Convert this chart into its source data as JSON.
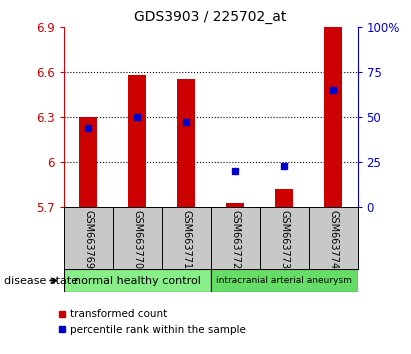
{
  "title": "GDS3903 / 225702_at",
  "samples": [
    "GSM663769",
    "GSM663770",
    "GSM663771",
    "GSM663772",
    "GSM663773",
    "GSM663774"
  ],
  "transformed_count": [
    6.3,
    6.58,
    6.55,
    5.73,
    5.82,
    6.9
  ],
  "percentile_rank": [
    44,
    50,
    47,
    20,
    23,
    65
  ],
  "ymin": 5.7,
  "ymax": 6.9,
  "yticks": [
    5.7,
    6.0,
    6.3,
    6.6,
    6.9
  ],
  "ytick_labels": [
    "5.7",
    "6",
    "6.3",
    "6.6",
    "6.9"
  ],
  "bar_color": "#cc0000",
  "dot_color": "#0000cc",
  "groups": [
    {
      "label": "normal healthy control",
      "color": "#88ee88",
      "count": 3
    },
    {
      "label": "intracranial arterial aneurysm",
      "color": "#66dd66",
      "count": 3
    }
  ],
  "group_label_prefix": "disease state",
  "label_area_color": "#c8c8c8",
  "background_color": "#ffffff",
  "plot_bg_color": "#ffffff",
  "right_yaxis_color": "#0000cc",
  "left_yaxis_color": "#cc0000",
  "right_ticks_pct": [
    0,
    25,
    50,
    75,
    100
  ],
  "right_tick_labels": [
    "0",
    "25",
    "50",
    "75",
    "100%"
  ]
}
